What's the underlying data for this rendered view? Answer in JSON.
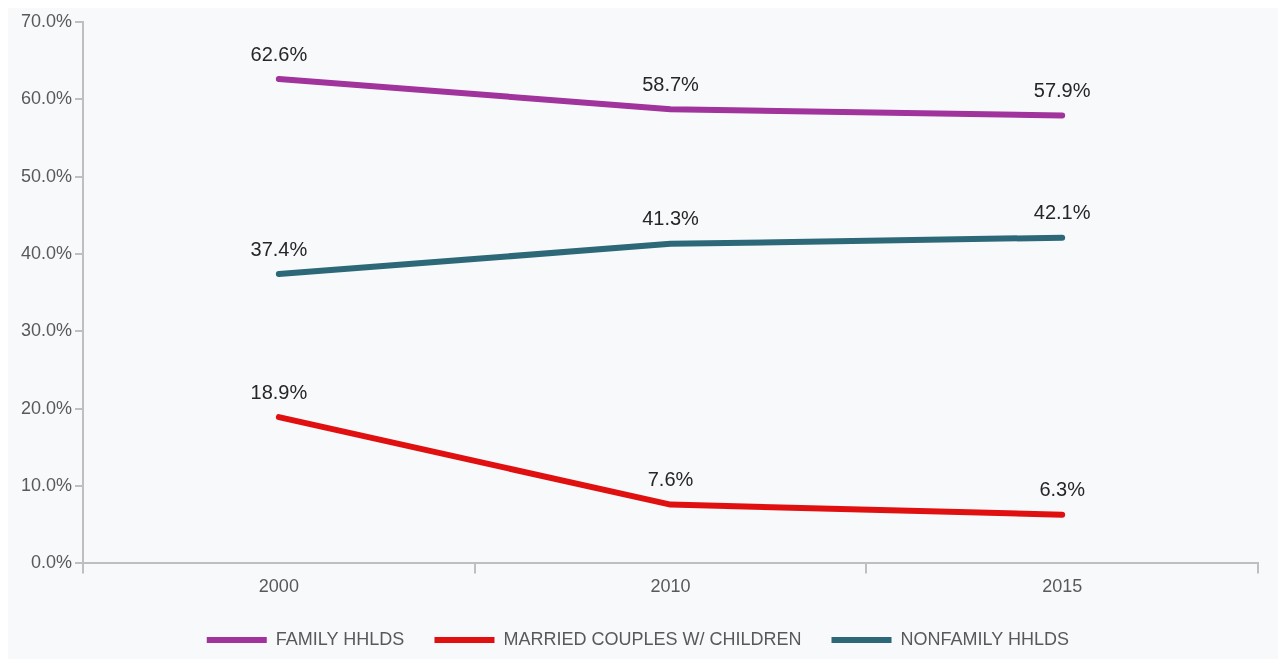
{
  "chart_data": {
    "type": "line",
    "categories": [
      "2000",
      "2010",
      "2015"
    ],
    "series": [
      {
        "name": "FAMILY HHLDS",
        "color": "#a0339c",
        "values": [
          62.6,
          58.7,
          57.9
        ],
        "value_labels": [
          "62.6%",
          "58.7%",
          "57.9%"
        ]
      },
      {
        "name": "MARRIED COUPLES W/ CHILDREN",
        "color": "#e01010",
        "values": [
          18.9,
          7.6,
          6.3
        ],
        "value_labels": [
          "18.9%",
          "7.6%",
          "6.3%"
        ]
      },
      {
        "name": "NONFAMILY HHLDS",
        "color": "#2c6878",
        "values": [
          37.4,
          41.3,
          42.1
        ],
        "value_labels": [
          "37.4%",
          "41.3%",
          "42.1%"
        ]
      }
    ],
    "ylim": [
      0,
      70
    ],
    "yticks": [
      {
        "value": 0,
        "label": "0.0%"
      },
      {
        "value": 10,
        "label": "10.0%"
      },
      {
        "value": 20,
        "label": "20.0%"
      },
      {
        "value": 30,
        "label": "30.0%"
      },
      {
        "value": 40,
        "label": "40.0%"
      },
      {
        "value": 50,
        "label": "50.0%"
      },
      {
        "value": 60,
        "label": "60.0%"
      },
      {
        "value": 70,
        "label": "70.0%"
      }
    ],
    "grid": false,
    "legend": "bottom",
    "marker": "none",
    "line_style": "solid"
  }
}
